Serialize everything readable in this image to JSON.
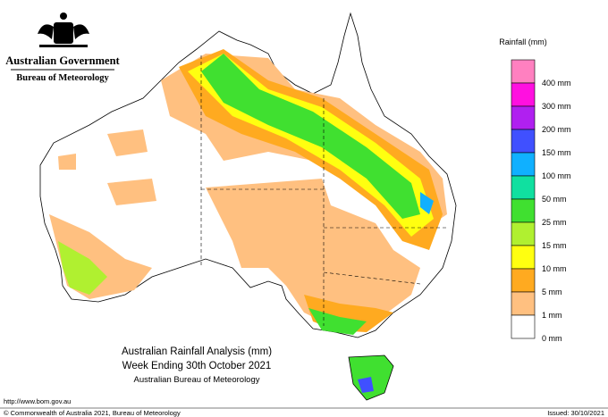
{
  "header": {
    "government": "Australian Government",
    "bureau": "Bureau of Meteorology"
  },
  "legend": {
    "title": "Rainfall (mm)",
    "items": [
      {
        "label": "400 mm",
        "color": "#ff80c0"
      },
      {
        "label": "300 mm",
        "color": "#ff10e0"
      },
      {
        "label": "200 mm",
        "color": "#b020f0"
      },
      {
        "label": "150 mm",
        "color": "#4050ff"
      },
      {
        "label": "100 mm",
        "color": "#10b0ff"
      },
      {
        "label": "50 mm",
        "color": "#10e0a0"
      },
      {
        "label": "25 mm",
        "color": "#40e030"
      },
      {
        "label": "15 mm",
        "color": "#b0f030"
      },
      {
        "label": "10 mm",
        "color": "#ffff10"
      },
      {
        "label": "5 mm",
        "color": "#ffaa20"
      },
      {
        "label": "1 mm",
        "color": "#ffc080"
      },
      {
        "label": "0 mm",
        "color": "#ffffff"
      }
    ]
  },
  "title": {
    "line1": "Australian Rainfall Analysis (mm)",
    "line2": "Week Ending 30th October 2021",
    "line3": "Australian Bureau of Meteorology"
  },
  "footer": {
    "url": "http://www.bom.gov.au",
    "copyright": "© Commonwealth of Australia 2021, Bureau of Meteorology",
    "issued": "Issued: 30/10/2021"
  }
}
